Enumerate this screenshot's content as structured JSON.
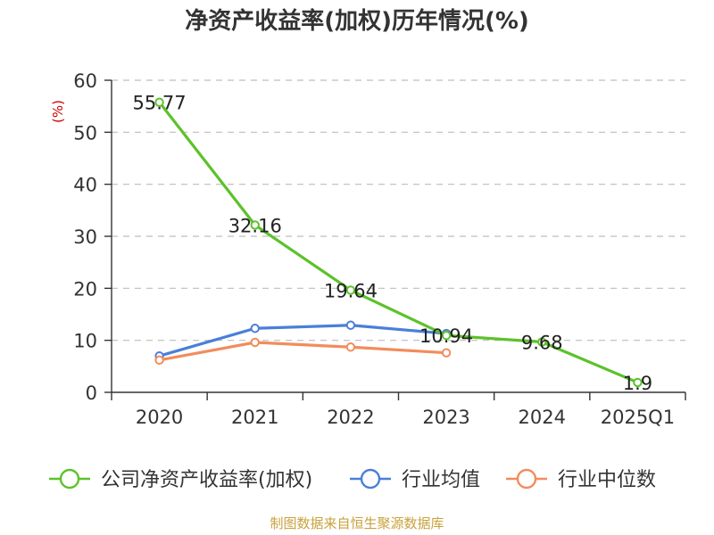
{
  "chart_data": {
    "type": "line",
    "title": "净资产收益率(加权)历年情况(%)",
    "ylabel": "(%)",
    "xlabel": "",
    "categories": [
      "2020",
      "2021",
      "2022",
      "2023",
      "2024",
      "2025Q1"
    ],
    "ylim": [
      0,
      60
    ],
    "yticks": [
      0,
      10,
      20,
      30,
      40,
      50,
      60
    ],
    "grid": true,
    "legend_position": "bottom",
    "series": [
      {
        "name": "公司净资产收益率(加权)",
        "color": "#5cc22a",
        "values": [
          55.77,
          32.16,
          19.64,
          10.94,
          9.68,
          1.9
        ],
        "labels": [
          "55.77",
          "32.16",
          "19.64",
          "10.94",
          "9.68",
          "1.9"
        ]
      },
      {
        "name": "行业均值",
        "color": "#4a7fd8",
        "values": [
          7.0,
          12.3,
          12.9,
          11.3,
          null,
          null
        ]
      },
      {
        "name": "行业中位数",
        "color": "#f28c5c",
        "values": [
          6.2,
          9.6,
          8.7,
          7.6,
          null,
          null
        ]
      }
    ]
  },
  "source_text": "制图数据来自恒生聚源数据库"
}
